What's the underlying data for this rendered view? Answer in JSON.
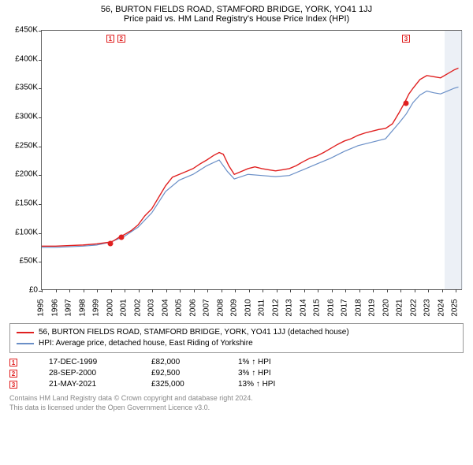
{
  "title_line1": "56, BURTON FIELDS ROAD, STAMFORD BRIDGE, YORK, YO41 1JJ",
  "title_line2": "Price paid vs. HM Land Registry's House Price Index (HPI)",
  "chart": {
    "type": "line",
    "x_range": [
      1995,
      2025.5
    ],
    "y_range": [
      0,
      450000
    ],
    "x_ticks": [
      1995,
      1996,
      1997,
      1998,
      1999,
      2000,
      2001,
      2002,
      2003,
      2004,
      2005,
      2006,
      2007,
      2008,
      2009,
      2010,
      2011,
      2012,
      2013,
      2014,
      2015,
      2016,
      2017,
      2018,
      2019,
      2020,
      2021,
      2022,
      2023,
      2024,
      2025
    ],
    "y_ticks": [
      0,
      50000,
      100000,
      150000,
      200000,
      250000,
      300000,
      350000,
      400000,
      450000
    ],
    "y_tick_labels": [
      "£0",
      "£50K",
      "£100K",
      "£150K",
      "£200K",
      "£250K",
      "£300K",
      "£350K",
      "£400K",
      "£450K"
    ],
    "background_color": "#ffffff",
    "shaded_region_color": "#dce4ef",
    "shaded_region_start": 2024.2,
    "shaded_region_end": 2025.5,
    "series": [
      {
        "name": "56, BURTON FIELDS ROAD, STAMFORD BRIDGE, YORK, YO41 1JJ (detached house)",
        "color": "#e02020",
        "line_width": 1.4,
        "points": [
          [
            1995,
            75000
          ],
          [
            1996,
            75000
          ],
          [
            1997,
            76000
          ],
          [
            1998,
            77000
          ],
          [
            1999,
            79000
          ],
          [
            1999.96,
            82000
          ],
          [
            2000.2,
            84000
          ],
          [
            2000.75,
            92500
          ],
          [
            2001,
            95000
          ],
          [
            2001.5,
            102000
          ],
          [
            2002,
            112000
          ],
          [
            2002.5,
            128000
          ],
          [
            2003,
            140000
          ],
          [
            2003.5,
            160000
          ],
          [
            2004,
            180000
          ],
          [
            2004.5,
            195000
          ],
          [
            2005,
            200000
          ],
          [
            2005.5,
            205000
          ],
          [
            2006,
            210000
          ],
          [
            2006.5,
            218000
          ],
          [
            2007,
            225000
          ],
          [
            2007.5,
            233000
          ],
          [
            2007.9,
            238000
          ],
          [
            2008.2,
            235000
          ],
          [
            2008.6,
            215000
          ],
          [
            2009,
            200000
          ],
          [
            2009.5,
            205000
          ],
          [
            2010,
            210000
          ],
          [
            2010.5,
            213000
          ],
          [
            2011,
            210000
          ],
          [
            2011.5,
            208000
          ],
          [
            2012,
            206000
          ],
          [
            2012.5,
            208000
          ],
          [
            2013,
            210000
          ],
          [
            2013.5,
            215000
          ],
          [
            2014,
            222000
          ],
          [
            2014.5,
            228000
          ],
          [
            2015,
            232000
          ],
          [
            2015.5,
            238000
          ],
          [
            2016,
            245000
          ],
          [
            2016.5,
            252000
          ],
          [
            2017,
            258000
          ],
          [
            2017.5,
            262000
          ],
          [
            2018,
            268000
          ],
          [
            2018.5,
            272000
          ],
          [
            2019,
            275000
          ],
          [
            2019.5,
            278000
          ],
          [
            2020,
            280000
          ],
          [
            2020.5,
            288000
          ],
          [
            2021,
            308000
          ],
          [
            2021.39,
            325000
          ],
          [
            2021.7,
            340000
          ],
          [
            2022,
            350000
          ],
          [
            2022.5,
            365000
          ],
          [
            2023,
            372000
          ],
          [
            2023.5,
            370000
          ],
          [
            2024,
            368000
          ],
          [
            2024.5,
            375000
          ],
          [
            2025,
            382000
          ],
          [
            2025.3,
            385000
          ]
        ]
      },
      {
        "name": "HPI: Average price, detached house, East Riding of Yorkshire",
        "color": "#6a8fc7",
        "line_width": 1.2,
        "points": [
          [
            1995,
            73000
          ],
          [
            1996,
            73000
          ],
          [
            1997,
            74000
          ],
          [
            1998,
            75000
          ],
          [
            1999,
            77000
          ],
          [
            2000,
            82000
          ],
          [
            2001,
            92000
          ],
          [
            2002,
            108000
          ],
          [
            2003,
            133000
          ],
          [
            2004,
            170000
          ],
          [
            2005,
            190000
          ],
          [
            2006,
            200000
          ],
          [
            2007,
            215000
          ],
          [
            2007.9,
            225000
          ],
          [
            2008.5,
            205000
          ],
          [
            2009,
            192000
          ],
          [
            2010,
            200000
          ],
          [
            2011,
            198000
          ],
          [
            2012,
            196000
          ],
          [
            2013,
            198000
          ],
          [
            2014,
            208000
          ],
          [
            2015,
            218000
          ],
          [
            2016,
            228000
          ],
          [
            2017,
            240000
          ],
          [
            2018,
            250000
          ],
          [
            2019,
            256000
          ],
          [
            2020,
            262000
          ],
          [
            2021,
            290000
          ],
          [
            2021.5,
            305000
          ],
          [
            2022,
            325000
          ],
          [
            2022.5,
            338000
          ],
          [
            2023,
            345000
          ],
          [
            2023.5,
            342000
          ],
          [
            2024,
            340000
          ],
          [
            2024.5,
            345000
          ],
          [
            2025,
            350000
          ],
          [
            2025.3,
            352000
          ]
        ]
      }
    ],
    "event_markers": [
      {
        "n": "1",
        "x": 1999.96,
        "price": 82000
      },
      {
        "n": "2",
        "x": 2000.75,
        "price": 92500
      },
      {
        "n": "3",
        "x": 2021.39,
        "price": 325000
      }
    ]
  },
  "legend": {
    "items": [
      {
        "color": "#e02020",
        "label": "56, BURTON FIELDS ROAD, STAMFORD BRIDGE, YORK, YO41 1JJ (detached house)"
      },
      {
        "color": "#6a8fc7",
        "label": "HPI: Average price, detached house, East Riding of Yorkshire"
      }
    ]
  },
  "events": [
    {
      "n": "1",
      "date": "17-DEC-1999",
      "price": "£82,000",
      "pct": "1% ↑ HPI"
    },
    {
      "n": "2",
      "date": "28-SEP-2000",
      "price": "£92,500",
      "pct": "3% ↑ HPI"
    },
    {
      "n": "3",
      "date": "21-MAY-2021",
      "price": "£325,000",
      "pct": "13% ↑ HPI"
    }
  ],
  "footer": {
    "line1": "Contains HM Land Registry data © Crown copyright and database right 2024.",
    "line2": "This data is licensed under the Open Government Licence v3.0."
  }
}
